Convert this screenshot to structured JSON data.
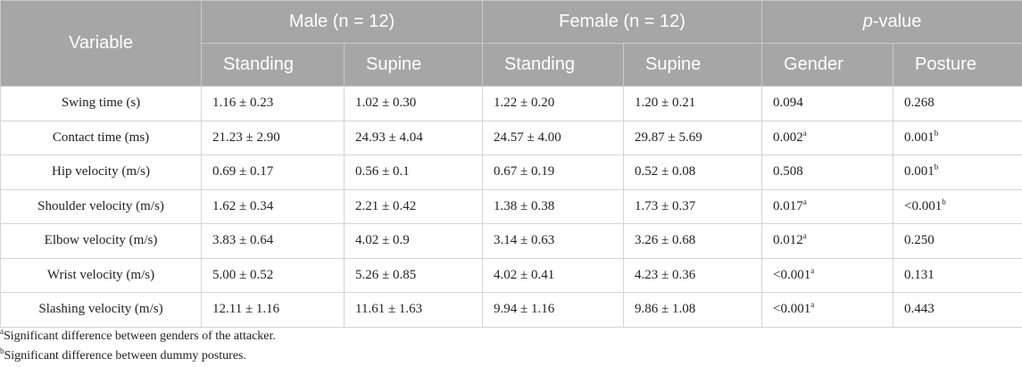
{
  "table": {
    "header": {
      "top": [
        "Variable",
        "Male (n = 12)",
        "Female (n = 12)",
        {
          "italic": "p",
          "text": "-value"
        }
      ],
      "sub": [
        "Standing",
        "Supine",
        "Standing",
        "Supine",
        "Gender",
        "Posture"
      ]
    },
    "rows": [
      [
        "Swing time (s)",
        "1.16 ± 0.23",
        "1.02 ± 0.30",
        "1.22 ± 0.20",
        "1.20 ± 0.21",
        "0.094",
        "0.268"
      ],
      [
        "Contact time (ms)",
        "21.23 ± 2.90",
        "24.93 ± 4.04",
        "24.57 ± 4.00",
        "29.87 ± 5.69",
        {
          "text": "0.002",
          "sup": "a"
        },
        {
          "text": "0.001",
          "sup": "b"
        }
      ],
      [
        "Hip velocity (m/s)",
        "0.69 ± 0.17",
        "0.56 ± 0.1",
        "0.67 ± 0.19",
        "0.52 ± 0.08",
        "0.508",
        {
          "text": "0.001",
          "sup": "b"
        }
      ],
      [
        "Shoulder velocity (m/s)",
        "1.62 ± 0.34",
        "2.21 ± 0.42",
        "1.38 ± 0.38",
        "1.73 ± 0.37",
        {
          "text": "0.017",
          "sup": "a"
        },
        {
          "text": "<0.001",
          "sup": "b"
        }
      ],
      [
        "Elbow velocity (m/s)",
        "3.83 ± 0.64",
        "4.02 ± 0.9",
        "3.14 ± 0.63",
        "3.26 ± 0.68",
        {
          "text": "0.012",
          "sup": "a"
        },
        "0.250"
      ],
      [
        "Wrist velocity (m/s)",
        "5.00 ± 0.52",
        "5.26 ± 0.85",
        "4.02 ± 0.41",
        "4.23 ± 0.36",
        {
          "text": "<0.001",
          "sup": "a"
        },
        "0.131"
      ],
      [
        "Slashing velocity (m/s)",
        "12.11 ± 1.16",
        "11.61 ± 1.63",
        "9.94 ± 1.16",
        "9.86 ± 1.08",
        {
          "text": "<0.001",
          "sup": "a"
        },
        "0.443"
      ]
    ]
  },
  "footnotes": [
    {
      "sup": "a",
      "text": "Significant difference between genders of the attacker."
    },
    {
      "sup": "b",
      "text": "Significant difference between dummy postures."
    }
  ]
}
